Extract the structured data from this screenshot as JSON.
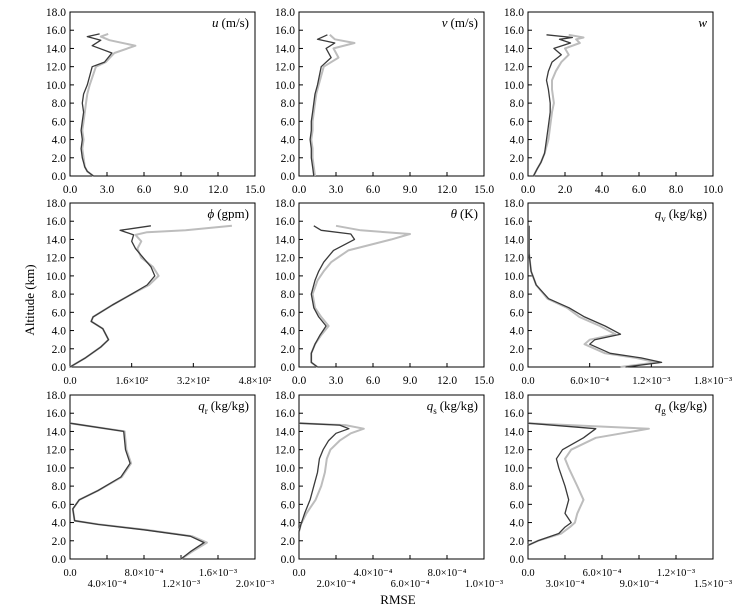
{
  "figure": {
    "xlabel": "RMSE",
    "ylabel": "Altitude (km)"
  },
  "colors": {
    "series_a": "#3a3a3a",
    "series_b": "#bdbdbd"
  },
  "chart_data": [
    {
      "type": "line",
      "var": "u",
      "unit": "(m/s)",
      "xlim": [
        0,
        15
      ],
      "ylim": [
        0,
        18
      ],
      "xticks": [
        "0.0",
        "3.0",
        "6.0",
        "9.0",
        "12.0",
        "15.0"
      ],
      "yticks": [
        "0.0",
        "2.0",
        "4.0",
        "6.0",
        "8.0",
        "10.0",
        "12.0",
        "14.0",
        "16.0",
        "18.0"
      ],
      "series": [
        {
          "x": [
            1.9,
            1.4,
            1.2,
            1.0,
            0.9,
            1.0,
            0.9,
            1.0,
            1.1,
            1.0,
            1.1,
            1.4,
            1.8,
            2.8,
            3.4,
            1.8,
            2.5,
            1.4,
            2.4
          ],
          "y": [
            0.0,
            0.5,
            1.0,
            2.0,
            3.0,
            4.0,
            5.0,
            6.0,
            7.0,
            8.0,
            9.0,
            10.0,
            12.0,
            12.5,
            13.5,
            14.3,
            14.9,
            15.3,
            15.6
          ]
        },
        {
          "x": [
            1.9,
            1.4,
            1.2,
            1.1,
            1.0,
            1.1,
            1.0,
            1.1,
            1.2,
            1.3,
            1.4,
            1.6,
            2.1,
            2.9,
            3.6,
            5.3,
            3.2,
            2.5,
            3.1
          ],
          "y": [
            0.0,
            0.5,
            1.0,
            2.0,
            3.0,
            4.0,
            5.0,
            6.0,
            7.0,
            8.0,
            9.0,
            10.0,
            12.0,
            12.5,
            13.5,
            14.3,
            14.9,
            15.3,
            15.6
          ]
        }
      ]
    },
    {
      "type": "line",
      "var": "v",
      "unit": "(m/s)",
      "xlim": [
        0,
        15
      ],
      "ylim": [
        0,
        18
      ],
      "xticks": [
        "0.0",
        "3.0",
        "6.0",
        "9.0",
        "12.0",
        "15.0"
      ],
      "yticks": [
        "0.0",
        "2.0",
        "4.0",
        "6.0",
        "8.0",
        "10.0",
        "12.0",
        "14.0",
        "16.0",
        "18.0"
      ],
      "series": [
        {
          "x": [
            1.2,
            1.1,
            1.0,
            1.0,
            0.9,
            1.0,
            1.0,
            1.1,
            1.2,
            1.3,
            1.5,
            1.8,
            2.6,
            2.2,
            2.9,
            1.5,
            2.3
          ],
          "y": [
            0.0,
            1.0,
            2.0,
            3.0,
            4.0,
            5.0,
            6.0,
            7.0,
            8.0,
            9.0,
            10.0,
            12.0,
            13.0,
            14.0,
            14.6,
            15.0,
            15.5
          ]
        },
        {
          "x": [
            1.3,
            1.2,
            1.1,
            1.1,
            1.0,
            1.1,
            1.1,
            1.2,
            1.3,
            1.4,
            1.6,
            2.0,
            3.2,
            2.8,
            4.5,
            2.9,
            2.5
          ],
          "y": [
            0.0,
            1.0,
            2.0,
            3.0,
            4.0,
            5.0,
            6.0,
            7.0,
            8.0,
            9.0,
            10.0,
            12.0,
            13.0,
            14.0,
            14.6,
            15.0,
            15.5
          ]
        }
      ]
    },
    {
      "type": "line",
      "var": "w",
      "unit": "",
      "xlim": [
        0,
        10
      ],
      "ylim": [
        0,
        18
      ],
      "xticks": [
        "0.0",
        "2.0",
        "4.0",
        "6.0",
        "8.0",
        "10.0"
      ],
      "yticks": [
        "0.0",
        "2.0",
        "4.0",
        "6.0",
        "8.0",
        "10.0",
        "12.0",
        "14.0",
        "16.0",
        "18.0"
      ],
      "series": [
        {
          "x": [
            0.3,
            0.5,
            0.7,
            0.9,
            1.0,
            1.1,
            1.2,
            1.2,
            1.1,
            1.0,
            1.1,
            1.3,
            1.8,
            1.4,
            2.3,
            1.7,
            2.4,
            1.0
          ],
          "y": [
            0.0,
            0.8,
            1.5,
            2.5,
            4.0,
            5.5,
            7.0,
            8.0,
            9.5,
            10.5,
            11.5,
            12.5,
            13.3,
            14.0,
            14.6,
            15.0,
            15.2,
            15.5
          ]
        },
        {
          "x": [
            0.3,
            0.5,
            0.7,
            0.9,
            1.1,
            1.2,
            1.3,
            1.4,
            1.3,
            1.3,
            1.5,
            1.8,
            2.2,
            2.0,
            2.8,
            2.6,
            3.0,
            2.2
          ],
          "y": [
            0.0,
            0.8,
            1.5,
            2.5,
            4.0,
            5.5,
            7.0,
            8.0,
            9.5,
            10.5,
            11.5,
            12.5,
            13.3,
            14.0,
            14.6,
            15.0,
            15.2,
            15.5
          ]
        }
      ]
    },
    {
      "type": "line",
      "var": "ϕ",
      "unit": "(gpm)",
      "xlim": [
        0,
        480
      ],
      "ylim": [
        0,
        18
      ],
      "xticks": [
        "0.0",
        "1.6×10²",
        "3.2×10²",
        "4.8×10²"
      ],
      "yticks": [
        "0.0",
        "2.0",
        "4.0",
        "6.0",
        "8.0",
        "10.0",
        "12.0",
        "14.0",
        "16.0",
        "18.0"
      ],
      "series": [
        {
          "x": [
            0,
            40,
            80,
            100,
            85,
            55,
            60,
            110,
            160,
            200,
            220,
            210,
            190,
            170,
            160,
            165,
            145,
            130,
            210
          ],
          "y": [
            0.0,
            1.0,
            2.2,
            3.0,
            4.2,
            5.0,
            5.5,
            6.8,
            8.0,
            9.0,
            10.0,
            11.0,
            12.0,
            13.0,
            13.8,
            14.5,
            14.8,
            15.0,
            15.5
          ]
        },
        {
          "x": [
            0,
            40,
            80,
            100,
            85,
            55,
            60,
            110,
            160,
            205,
            230,
            215,
            185,
            175,
            185,
            170,
            200,
            300,
            420
          ],
          "y": [
            0.0,
            1.0,
            2.2,
            3.0,
            4.2,
            5.0,
            5.5,
            6.8,
            8.0,
            9.0,
            10.0,
            11.0,
            12.0,
            13.0,
            13.8,
            14.5,
            14.8,
            15.0,
            15.5
          ]
        }
      ]
    },
    {
      "type": "line",
      "var": "θ",
      "unit": "(K)",
      "xlim": [
        0,
        15
      ],
      "ylim": [
        0,
        18
      ],
      "xticks": [
        "0.0",
        "3.0",
        "6.0",
        "9.0",
        "12.0",
        "15.0"
      ],
      "yticks": [
        "0.0",
        "2.0",
        "4.0",
        "6.0",
        "8.0",
        "10.0",
        "12.0",
        "14.0",
        "16.0",
        "18.0"
      ],
      "series": [
        {
          "x": [
            1.5,
            1.0,
            1.0,
            1.3,
            1.7,
            2.2,
            1.6,
            1.2,
            1.0,
            1.3,
            1.6,
            2.0,
            2.8,
            4.5,
            4.2,
            1.8,
            1.2
          ],
          "y": [
            0.0,
            0.5,
            1.5,
            2.5,
            3.5,
            4.5,
            5.5,
            6.5,
            8.0,
            9.5,
            10.5,
            11.5,
            12.8,
            14.0,
            14.6,
            15.0,
            15.5
          ]
        },
        {
          "x": [
            1.5,
            1.0,
            1.0,
            1.3,
            1.8,
            2.4,
            1.8,
            1.3,
            1.1,
            1.5,
            2.0,
            2.6,
            4.0,
            7.5,
            9.0,
            5.0,
            3.0
          ],
          "y": [
            0.0,
            0.5,
            1.5,
            2.5,
            3.5,
            4.5,
            5.5,
            6.5,
            8.0,
            9.5,
            10.5,
            11.5,
            12.8,
            14.0,
            14.6,
            15.0,
            15.5
          ]
        }
      ]
    },
    {
      "type": "line",
      "var": "q_v",
      "var_base": "q",
      "var_sub": "v",
      "unit": "(kg/kg)",
      "xlim": [
        0,
        0.0018
      ],
      "ylim": [
        0,
        18
      ],
      "xticks": [
        "0.0",
        "6.0×10⁻⁴",
        "1.2×10⁻³",
        "1.8×10⁻³"
      ],
      "yticks": [
        "0.0",
        "2.0",
        "4.0",
        "6.0",
        "8.0",
        "10.0",
        "12.0",
        "14.0",
        "16.0",
        "18.0"
      ],
      "series": [
        {
          "x": [
            0.00095,
            0.0013,
            0.0011,
            0.0008,
            0.0006,
            0.00065,
            0.0009,
            0.00075,
            0.00055,
            0.0004,
            0.0002,
            8e-05,
            3e-05,
            1e-05,
            1e-05
          ],
          "y": [
            0.0,
            0.5,
            1.0,
            1.5,
            2.5,
            3.0,
            3.6,
            4.5,
            5.5,
            6.5,
            7.5,
            9.0,
            10.5,
            12.5,
            15.5
          ]
        },
        {
          "x": [
            0.0009,
            0.00125,
            0.00105,
            0.00075,
            0.00055,
            0.0006,
            0.00085,
            0.0007,
            0.0005,
            0.00038,
            0.00019,
            8e-05,
            3e-05,
            1e-05,
            1e-05
          ],
          "y": [
            0.0,
            0.5,
            1.0,
            1.5,
            2.5,
            3.0,
            3.6,
            4.5,
            5.5,
            6.5,
            7.5,
            9.0,
            10.5,
            12.5,
            15.5
          ]
        }
      ]
    },
    {
      "type": "line",
      "var": "q_r",
      "var_base": "q",
      "var_sub": "r",
      "unit": "(kg/kg)",
      "xlim": [
        0,
        0.002
      ],
      "ylim": [
        0,
        18
      ],
      "xticks": [
        "0.0",
        "4.0×10⁻⁴",
        "8.0×10⁻⁴",
        "1.2×10⁻³",
        "1.6×10⁻³",
        "2.0×10⁻³"
      ],
      "yticks": [
        "0.0",
        "2.0",
        "4.0",
        "6.0",
        "8.0",
        "10.0",
        "12.0",
        "14.0",
        "16.0",
        "18.0"
      ],
      "series": [
        {
          "x": [
            0.0012,
            0.0013,
            0.00145,
            0.0013,
            0.0008,
            0.0003,
            5e-05,
            3e-05,
            0.0001,
            0.0003,
            0.00055,
            0.00065,
            0.0006,
            0.00058,
            0.0
          ],
          "y": [
            0.0,
            0.8,
            1.8,
            2.5,
            3.2,
            3.8,
            4.2,
            5.5,
            6.5,
            7.5,
            9.0,
            10.5,
            12.0,
            14.0,
            14.9
          ]
        },
        {
          "x": [
            0.0012,
            0.00132,
            0.00148,
            0.00132,
            0.00082,
            0.00031,
            5e-05,
            3e-05,
            0.0001,
            0.0003,
            0.00056,
            0.00066,
            0.00061,
            0.00059,
            0.0
          ],
          "y": [
            0.0,
            0.8,
            1.8,
            2.5,
            3.2,
            3.8,
            4.2,
            5.5,
            6.5,
            7.5,
            9.0,
            10.5,
            12.0,
            14.0,
            14.9
          ]
        }
      ]
    },
    {
      "type": "line",
      "var": "q_s",
      "var_base": "q",
      "var_sub": "s",
      "unit": "(kg/kg)",
      "xlim": [
        0,
        0.001
      ],
      "ylim": [
        0,
        18
      ],
      "xticks": [
        "0.0",
        "2.0×10⁻⁴",
        "4.0×10⁻⁴",
        "6.0×10⁻⁴",
        "8.0×10⁻⁴",
        "1.0×10⁻³"
      ],
      "yticks": [
        "0.0",
        "2.0",
        "4.0",
        "6.0",
        "8.0",
        "10.0",
        "12.0",
        "14.0",
        "16.0",
        "18.0"
      ],
      "series": [
        {
          "x": [
            0.0,
            1e-05,
            3e-05,
            6e-05,
            8e-05,
            0.0001,
            0.00011,
            0.00013,
            0.00016,
            0.0002,
            0.00027,
            0.00022,
            0.0
          ],
          "y": [
            3.0,
            3.8,
            5.0,
            6.5,
            8.0,
            9.5,
            11.0,
            12.0,
            13.0,
            13.8,
            14.3,
            14.7,
            14.9
          ]
        },
        {
          "x": [
            0.0,
            1e-05,
            4e-05,
            9e-05,
            0.00012,
            0.00014,
            0.00015,
            0.00017,
            0.00022,
            0.00028,
            0.00035,
            0.00025,
            0.0
          ],
          "y": [
            3.0,
            3.8,
            5.0,
            6.5,
            8.0,
            9.5,
            11.0,
            12.0,
            13.0,
            13.8,
            14.3,
            14.7,
            14.9
          ]
        }
      ]
    },
    {
      "type": "line",
      "var": "q_g",
      "var_base": "q",
      "var_sub": "g",
      "unit": "(kg/kg)",
      "xlim": [
        0,
        0.0015
      ],
      "ylim": [
        0,
        18
      ],
      "xticks": [
        "0.0",
        "3.0×10⁻⁴",
        "6.0×10⁻⁴",
        "9.0×10⁻⁴",
        "1.2×10⁻³",
        "1.5×10⁻³"
      ],
      "yticks": [
        "0.0",
        "2.0",
        "4.0",
        "6.0",
        "8.0",
        "10.0",
        "12.0",
        "14.0",
        "16.0",
        "18.0"
      ],
      "series": [
        {
          "x": [
            0.0,
            8e-05,
            0.00025,
            0.0003,
            0.00035,
            0.0003,
            0.00033,
            0.0003,
            0.00025,
            0.00023,
            0.00028,
            0.00045,
            0.00055,
            0.0
          ],
          "y": [
            1.5,
            2.0,
            2.8,
            3.5,
            4.0,
            5.0,
            6.5,
            8.0,
            10.0,
            11.0,
            12.0,
            13.3,
            14.3,
            14.9
          ]
        },
        {
          "x": [
            0.0,
            8e-05,
            0.00027,
            0.00034,
            0.00038,
            0.0004,
            0.00045,
            0.0004,
            0.00033,
            0.0003,
            0.00035,
            0.00055,
            0.00098,
            0.0
          ],
          "y": [
            1.5,
            2.0,
            2.8,
            3.5,
            4.0,
            5.0,
            6.5,
            8.0,
            10.0,
            11.0,
            12.0,
            13.3,
            14.3,
            14.9
          ]
        }
      ]
    }
  ]
}
